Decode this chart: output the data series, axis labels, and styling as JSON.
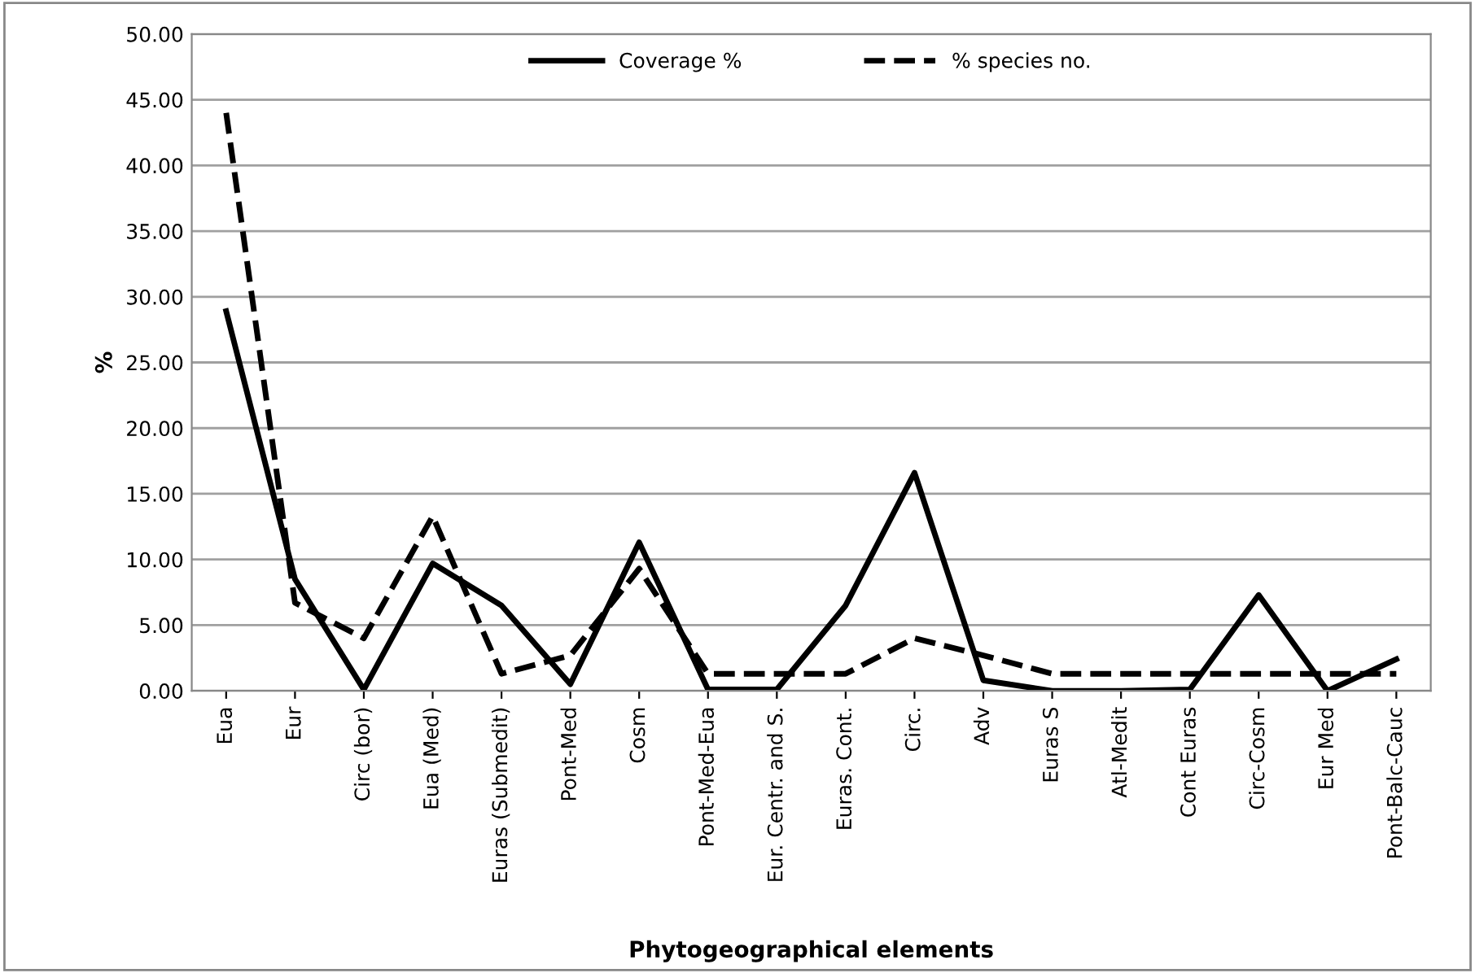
{
  "chart_data": {
    "type": "line",
    "xlabel": "Phytogeographical elements",
    "ylabel": "%",
    "categories": [
      "Eua",
      "Eur",
      "Circ (bor)",
      "Eua (Med)",
      "Euras (Submedit)",
      "Pont-Med",
      "Cosm",
      "Pont-Med-Eua",
      "Eur. Centr. and S.",
      "Euras. Cont.",
      "Circ.",
      "Adv",
      "Euras S",
      "Atl-Medit",
      "Cont Euras",
      "Circ-Cosm",
      "Eur Med",
      "Pont-Balc-Cauc"
    ],
    "series": [
      {
        "name": "Coverage %",
        "color": "#000000",
        "line_style": "solid",
        "values": [
          28.9,
          8.5,
          0.1,
          9.7,
          6.5,
          0.5,
          11.3,
          0.1,
          0.1,
          6.5,
          16.6,
          0.8,
          0.0,
          0.0,
          0.1,
          7.3,
          0.0,
          2.4
        ]
      },
      {
        "name": "% species no.",
        "color": "#000000",
        "line_style": "dashed",
        "values": [
          44.0,
          6.7,
          4.0,
          13.3,
          1.3,
          2.7,
          9.3,
          1.3,
          1.3,
          1.3,
          4.0,
          2.7,
          1.3,
          1.3,
          1.3,
          1.3,
          1.3,
          1.3
        ]
      }
    ],
    "ylim": [
      0,
      50
    ],
    "yticks": [
      {
        "value": 0,
        "label": "0.00"
      },
      {
        "value": 5,
        "label": "5.00"
      },
      {
        "value": 10,
        "label": "10.00"
      },
      {
        "value": 15,
        "label": "15.00"
      },
      {
        "value": 20,
        "label": "20.00"
      },
      {
        "value": 25,
        "label": "25.00"
      },
      {
        "value": 30,
        "label": "30.00"
      },
      {
        "value": 35,
        "label": "35.00"
      },
      {
        "value": 40,
        "label": "40.00"
      },
      {
        "value": 45,
        "label": "45.00"
      },
      {
        "value": 50,
        "label": "50.00"
      }
    ],
    "grid": "y",
    "legend": "top",
    "marker": "none"
  }
}
